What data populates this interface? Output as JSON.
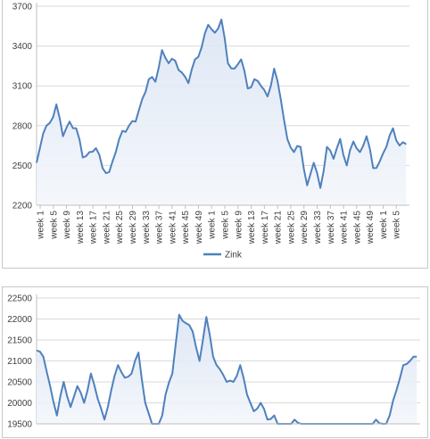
{
  "chart_data": [
    {
      "type": "area",
      "title": "",
      "xlabel": "",
      "ylabel": "",
      "ylim": [
        2200,
        3700
      ],
      "y_ticks": [
        "2200",
        "2500",
        "2800",
        "3100",
        "3400",
        "3700"
      ],
      "x_tick_labels": [
        "week 1",
        "week 5",
        "week 9",
        "week 13",
        "week 17",
        "week 21",
        "week 25",
        "week 29",
        "week 33",
        "week 37",
        "week 41",
        "week 45",
        "week 49",
        "week 1",
        "week 5",
        "week 9",
        "week 13",
        "week 17",
        "week 21",
        "week 25",
        "week 29",
        "week 33",
        "week 37",
        "week 41",
        "week 45",
        "week 49",
        "week 1",
        "week 5"
      ],
      "legend": {
        "position": "bottom",
        "entries": [
          "Zink"
        ]
      },
      "grid": true,
      "color": "#4f81bd",
      "series": [
        {
          "name": "Zink",
          "x": [
            1,
            3,
            5,
            7,
            9,
            11,
            13,
            15,
            17,
            19,
            21,
            23,
            25,
            27,
            29,
            31,
            33,
            35,
            37,
            39,
            41,
            43,
            45,
            47,
            49,
            51,
            53,
            55,
            57,
            59,
            61,
            63,
            65,
            67,
            69,
            71,
            73,
            75,
            77,
            79,
            81,
            83,
            85,
            87,
            89,
            91,
            93,
            95,
            97,
            99,
            101,
            103,
            105,
            107,
            109,
            111,
            113
          ],
          "values": [
            2520,
            2740,
            2820,
            2960,
            2720,
            2830,
            2780,
            2560,
            2600,
            2630,
            2480,
            2450,
            2600,
            2760,
            2800,
            2830,
            3000,
            3150,
            3130,
            3370,
            3270,
            3290,
            3200,
            3120,
            3300,
            3390,
            3560,
            3500,
            3600,
            3270,
            3230,
            3300,
            3080,
            3150,
            3100,
            3020,
            3230,
            3000,
            2700,
            2600,
            2640,
            2350,
            2520,
            2330,
            2640,
            2550,
            2700,
            2500,
            2680,
            2600,
            2720,
            2480,
            2530,
            2640,
            2780,
            2650,
            2660
          ]
        }
      ]
    },
    {
      "type": "area",
      "title": "",
      "xlabel": "",
      "ylabel": "",
      "ylim": [
        19500,
        22500
      ],
      "y_ticks": [
        "19500",
        "20000",
        "20500",
        "21000",
        "21500",
        "22000",
        "22500"
      ],
      "grid": true,
      "color": "#4f81bd",
      "series": [
        {
          "x": [
            1,
            3,
            5,
            7,
            9,
            11,
            13,
            15,
            17,
            19,
            21,
            23,
            25,
            27,
            29,
            31,
            33,
            35,
            37,
            39,
            41,
            43,
            45,
            47,
            49,
            51,
            53,
            55,
            57,
            59,
            61,
            63,
            65,
            67,
            69,
            71,
            73,
            75,
            77,
            79,
            81,
            83,
            85,
            87,
            89,
            91,
            93,
            95,
            97,
            99,
            101,
            103,
            105,
            107,
            109,
            111,
            113
          ],
          "values": [
            21250,
            21100,
            20400,
            19700,
            20500,
            19900,
            20400,
            20000,
            20700,
            20100,
            19600,
            20300,
            20900,
            20600,
            20700,
            21200,
            20000,
            19500,
            19300,
            20200,
            20700,
            22100,
            21900,
            21700,
            21000,
            22050,
            21100,
            20800,
            20500,
            20500,
            20900,
            20200,
            19800,
            20000,
            19600,
            19700,
            19300,
            19200,
            19600,
            19400,
            19400,
            19300,
            19500,
            19300,
            19400,
            19200,
            19300,
            19500,
            19400,
            19300,
            19600,
            19400,
            19700,
            20300,
            20900,
            21000,
            21100
          ]
        }
      ]
    }
  ]
}
